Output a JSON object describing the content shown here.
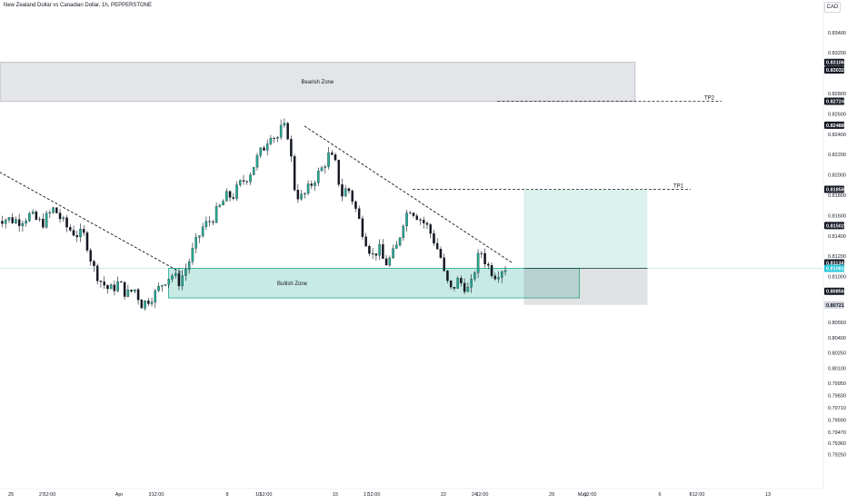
{
  "header": {
    "symbol_title": "New Zealand Dollar vs Canadian Dollar, 1h, PEPPERSTONE",
    "currency_button": "CAD"
  },
  "chart_data": {
    "type": "candlestick",
    "title": "New Zealand Dollar vs Canadian Dollar, 1h, PEPPERSTONE",
    "currency": "CAD",
    "ylim": [
      0.792,
      0.836
    ],
    "y_ticks": [
      "0.83400",
      "0.83200",
      "0.82800",
      "0.82600",
      "0.82400",
      "0.82200",
      "0.82000",
      "0.81800",
      "0.81600",
      "0.81400",
      "0.81200",
      "0.81000",
      "0.80550",
      "0.80400",
      "0.80250",
      "0.80100",
      "0.79950",
      "0.79830",
      "0.79710",
      "0.79590",
      "0.79470",
      "0.79360",
      "0.79250"
    ],
    "y_tick_values": [
      0.834,
      0.832,
      0.828,
      0.826,
      0.824,
      0.822,
      0.82,
      0.818,
      0.816,
      0.814,
      0.812,
      0.81,
      0.8055,
      0.804,
      0.8025,
      0.801,
      0.7995,
      0.7983,
      0.7971,
      0.7959,
      0.7947,
      0.7936,
      0.7925
    ],
    "price_labels": [
      {
        "value": "0.83106",
        "level": 0.83106,
        "style": "dark"
      },
      {
        "value": "0.83032",
        "level": 0.83032,
        "style": "dark"
      },
      {
        "value": "0.82724",
        "level": 0.82724,
        "style": "dark"
      },
      {
        "value": "0.82488",
        "level": 0.82488,
        "style": "dark"
      },
      {
        "value": "0.81858",
        "level": 0.81858,
        "style": "dark"
      },
      {
        "value": "0.81502",
        "level": 0.81502,
        "style": "dark"
      },
      {
        "value": "0.81134",
        "level": 0.81134,
        "style": "dark"
      },
      {
        "value": "0.81081",
        "level": 0.81081,
        "style": "cyan"
      },
      {
        "value": "0.80856",
        "level": 0.80856,
        "style": "dark"
      },
      {
        "value": "0.80721",
        "level": 0.80721,
        "style": "grey"
      }
    ],
    "x_ticks": [
      "25",
      "27",
      "12:00",
      "Apr",
      "3",
      "12:00",
      "8",
      "10",
      "12:00",
      "15",
      "17",
      "12:00",
      "22",
      "24",
      "12:00",
      "29",
      "May",
      "12:00",
      "6",
      "8",
      "12:00",
      "13"
    ],
    "x_tick_days": [
      0,
      2,
      2.5,
      7,
      9,
      9.5,
      14,
      16,
      16.5,
      21,
      23,
      23.5,
      28,
      30,
      30.5,
      35,
      37,
      37.5,
      42,
      44,
      44.5,
      49
    ],
    "price_path": [
      [
        -1,
        0.8158
      ],
      [
        0.5,
        0.8155
      ],
      [
        1.2,
        0.816
      ],
      [
        2,
        0.8152
      ],
      [
        2.8,
        0.8167
      ],
      [
        3.5,
        0.815
      ],
      [
        4.2,
        0.8142
      ],
      [
        4.8,
        0.814
      ],
      [
        5.3,
        0.811
      ],
      [
        5.8,
        0.8096
      ],
      [
        6.4,
        0.8086
      ],
      [
        7,
        0.8094
      ],
      [
        7.5,
        0.8082
      ],
      [
        8,
        0.8088
      ],
      [
        8.5,
        0.8072
      ],
      [
        8.9,
        0.8078
      ],
      [
        9.4,
        0.8084
      ],
      [
        9.9,
        0.8096
      ],
      [
        10.4,
        0.8102
      ],
      [
        10.9,
        0.8095
      ],
      [
        11.4,
        0.811
      ],
      [
        11.9,
        0.813
      ],
      [
        12.4,
        0.8148
      ],
      [
        12.9,
        0.8155
      ],
      [
        13.4,
        0.8165
      ],
      [
        13.9,
        0.8178
      ],
      [
        14.4,
        0.818
      ],
      [
        14.9,
        0.8192
      ],
      [
        15.4,
        0.82
      ],
      [
        15.9,
        0.8215
      ],
      [
        16.4,
        0.8228
      ],
      [
        16.8,
        0.8242
      ],
      [
        17.2,
        0.8235
      ],
      [
        17.6,
        0.8248
      ],
      [
        18.0,
        0.8238
      ],
      [
        18.3,
        0.819
      ],
      [
        18.7,
        0.8176
      ],
      [
        19.1,
        0.8182
      ],
      [
        19.6,
        0.8195
      ],
      [
        20.1,
        0.8205
      ],
      [
        20.6,
        0.822
      ],
      [
        21,
        0.821
      ],
      [
        21.4,
        0.818
      ],
      [
        21.8,
        0.8188
      ],
      [
        22.2,
        0.8172
      ],
      [
        22.6,
        0.8152
      ],
      [
        23,
        0.8135
      ],
      [
        23.4,
        0.812
      ],
      [
        23.8,
        0.8128
      ],
      [
        24.2,
        0.8112
      ],
      [
        24.6,
        0.8118
      ],
      [
        25,
        0.813
      ],
      [
        25.4,
        0.8155
      ],
      [
        25.8,
        0.8168
      ],
      [
        26.2,
        0.8162
      ],
      [
        26.6,
        0.8155
      ],
      [
        27,
        0.8148
      ],
      [
        27.4,
        0.8135
      ],
      [
        27.8,
        0.812
      ],
      [
        28.1,
        0.8098
      ],
      [
        28.5,
        0.8086
      ],
      [
        28.9,
        0.8096
      ],
      [
        29.3,
        0.8092
      ],
      [
        29.7,
        0.8085
      ],
      [
        30,
        0.8106
      ],
      [
        30.4,
        0.8126
      ],
      [
        30.8,
        0.8112
      ],
      [
        31.3,
        0.8102
      ],
      [
        31.8,
        0.8108
      ],
      [
        32.2,
        0.811
      ]
    ],
    "zones": [
      {
        "name": "Bearish Zone",
        "label": "Bearish Zone",
        "day_start": -1,
        "day_end": 40.4,
        "price_top": 0.83106,
        "price_bottom": 0.82724,
        "color": "#b2b5be"
      },
      {
        "name": "Bullish Zone",
        "label": "Bullish Zone",
        "day_start": 10.2,
        "day_end": 36.8,
        "price_top": 0.81081,
        "price_bottom": 0.8079,
        "color": "#22ab94"
      }
    ],
    "targets": [
      {
        "label": "TP2",
        "day_start": 31.5,
        "day_end": 46,
        "level": 0.82724
      },
      {
        "label": "TP1",
        "day_start": 26,
        "day_end": 44,
        "level": 0.81858
      }
    ],
    "trendlines": [
      {
        "from": [
          -1,
          0.8205
        ],
        "to": [
          11,
          0.8104
        ]
      },
      {
        "from": [
          19,
          0.8248
        ],
        "to": [
          32.5,
          0.8113
        ]
      }
    ],
    "position_box": {
      "day_start": 33.2,
      "day_end": 41.2,
      "entry": 0.81081,
      "target": 0.81858,
      "stop": 0.80721,
      "profit_color": "#22ab94",
      "loss_color": "#787b86"
    },
    "grid": false,
    "up_color": "#22ab94",
    "down_color": "#131722"
  }
}
